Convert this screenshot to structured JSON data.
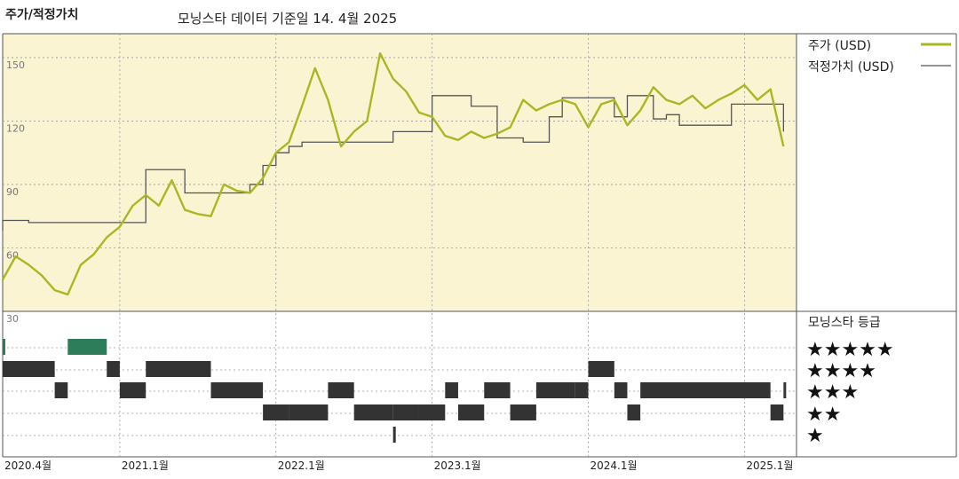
{
  "title": "주가/적정가치",
  "subtitle": "모닝스타 데이터 기준일 14. 4월 2025",
  "colors": {
    "background": "#FBF4D2",
    "price_line": "#A8B825",
    "fair_value_line": "#555555",
    "rating_mark": "#333333",
    "rating_mark_five": "#2E7D5A",
    "grid": "#9a9a9a"
  },
  "chart_data": [
    {
      "type": "line",
      "series": [
        {
          "name": "주가 (USD)",
          "x": [
            "2020-04",
            "2020-05",
            "2020-06",
            "2020-07",
            "2020-08",
            "2020-09",
            "2020-10",
            "2020-11",
            "2020-12",
            "2021-01",
            "2021-02",
            "2021-03",
            "2021-04",
            "2021-05",
            "2021-06",
            "2021-07",
            "2021-08",
            "2021-09",
            "2021-10",
            "2021-11",
            "2021-12",
            "2022-01",
            "2022-02",
            "2022-03",
            "2022-04",
            "2022-05",
            "2022-06",
            "2022-07",
            "2022-08",
            "2022-09",
            "2022-10",
            "2022-11",
            "2022-12",
            "2023-01",
            "2023-02",
            "2023-03",
            "2023-04",
            "2023-05",
            "2023-06",
            "2023-07",
            "2023-08",
            "2023-09",
            "2023-10",
            "2023-11",
            "2023-12",
            "2024-01",
            "2024-02",
            "2024-03",
            "2024-04",
            "2024-05",
            "2024-06",
            "2024-07",
            "2024-08",
            "2024-09",
            "2024-10",
            "2024-11",
            "2024-12",
            "2025-01",
            "2025-02",
            "2025-03",
            "2025-04"
          ],
          "y": [
            45,
            56,
            52,
            47,
            40,
            38,
            52,
            57,
            65,
            70,
            80,
            85,
            80,
            92,
            78,
            76,
            75,
            90,
            87,
            86,
            93,
            105,
            110,
            127,
            145,
            130,
            108,
            115,
            120,
            152,
            140,
            134,
            124,
            122,
            113,
            111,
            115,
            112,
            114,
            117,
            130,
            125,
            128,
            130,
            128,
            117,
            128,
            130,
            118,
            125,
            136,
            130,
            128,
            132,
            126,
            130,
            133,
            137,
            130,
            135,
            108
          ]
        },
        {
          "name": "적정가치 (USD)",
          "x": [
            "2020-04",
            "2020-04",
            "2020-06",
            "2021-01",
            "2021-02",
            "2021-03",
            "2021-06",
            "2021-08",
            "2021-11",
            "2021-12",
            "2022-01",
            "2022-02",
            "2022-03",
            "2022-07",
            "2022-10",
            "2022-12",
            "2023-01",
            "2023-04",
            "2023-06",
            "2023-08",
            "2023-10",
            "2023-11",
            "2024-02",
            "2024-03",
            "2024-04",
            "2024-06",
            "2024-07",
            "2024-08",
            "2024-09",
            "2024-12",
            "2025-03",
            "2025-04"
          ],
          "y": [
            68,
            73,
            72,
            72,
            72,
            97,
            86,
            86,
            90,
            99,
            105,
            108,
            110,
            110,
            115,
            115,
            132,
            127,
            112,
            110,
            122,
            131,
            131,
            122,
            132,
            121,
            123,
            118,
            118,
            128,
            128,
            115
          ]
        }
      ],
      "ylim": [
        30,
        155
      ],
      "yticks": [
        "150",
        "120",
        "90",
        "60",
        "30"
      ],
      "xticks": [
        "2020.4월",
        "2021.1월",
        "2022.1월",
        "2023.1월",
        "2024.1월",
        "2025.1월"
      ],
      "grid": true,
      "legend": "right"
    },
    {
      "type": "heatmap",
      "title": "모닝스타 등급",
      "rows": [
        "★★★★★",
        "★★★★",
        "★★★",
        "★★",
        "★"
      ],
      "periods": [
        {
          "start": "2020-04",
          "end": "2020-04",
          "rating": 5
        },
        {
          "start": "2020-04",
          "end": "2020-08",
          "rating": 4
        },
        {
          "start": "2020-08",
          "end": "2020-09",
          "rating": 3
        },
        {
          "start": "2020-09",
          "end": "2020-12",
          "rating": 5
        },
        {
          "start": "2020-12",
          "end": "2021-01",
          "rating": 4
        },
        {
          "start": "2021-01",
          "end": "2021-03",
          "rating": 3
        },
        {
          "start": "2021-03",
          "end": "2021-08",
          "rating": 4
        },
        {
          "start": "2021-08",
          "end": "2021-12",
          "rating": 3
        },
        {
          "start": "2021-12",
          "end": "2022-02",
          "rating": 2
        },
        {
          "start": "2022-02",
          "end": "2022-05",
          "rating": 2
        },
        {
          "start": "2022-05",
          "end": "2022-07",
          "rating": 3
        },
        {
          "start": "2022-07",
          "end": "2022-10",
          "rating": 2
        },
        {
          "start": "2022-10",
          "end": "2022-10",
          "rating": 1
        },
        {
          "start": "2022-10",
          "end": "2022-12",
          "rating": 2
        },
        {
          "start": "2022-12",
          "end": "2023-02",
          "rating": 2
        },
        {
          "start": "2023-02",
          "end": "2023-03",
          "rating": 3
        },
        {
          "start": "2023-03",
          "end": "2023-05",
          "rating": 2
        },
        {
          "start": "2023-05",
          "end": "2023-07",
          "rating": 3
        },
        {
          "start": "2023-07",
          "end": "2023-09",
          "rating": 2
        },
        {
          "start": "2023-09",
          "end": "2023-12",
          "rating": 3
        },
        {
          "start": "2023-12",
          "end": "2024-01",
          "rating": 3
        },
        {
          "start": "2024-01",
          "end": "2024-03",
          "rating": 4
        },
        {
          "start": "2024-03",
          "end": "2024-04",
          "rating": 3
        },
        {
          "start": "2024-04",
          "end": "2024-05",
          "rating": 2
        },
        {
          "start": "2024-05",
          "end": "2025-03",
          "rating": 3
        },
        {
          "start": "2025-03",
          "end": "2025-04",
          "rating": 2
        },
        {
          "start": "2025-04",
          "end": "2025-04",
          "rating": 3
        }
      ]
    }
  ]
}
